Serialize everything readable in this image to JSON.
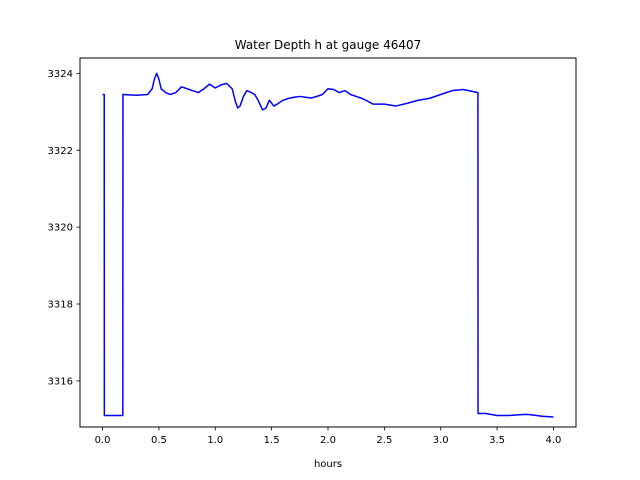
{
  "chart_data": {
    "type": "line",
    "title": "Water Depth h at gauge 46407",
    "xlabel": "hours",
    "ylabel": "",
    "xlim": [
      -0.2,
      4.2
    ],
    "ylim": [
      3314.8,
      3324.4
    ],
    "xticks": [
      0.0,
      0.5,
      1.0,
      1.5,
      2.0,
      2.5,
      3.0,
      3.5,
      4.0
    ],
    "xtick_labels": [
      "0.0",
      "0.5",
      "1.0",
      "1.5",
      "2.0",
      "2.5",
      "3.0",
      "3.5",
      "4.0"
    ],
    "yticks": [
      3316,
      3318,
      3320,
      3322,
      3324
    ],
    "ytick_labels": [
      "3316",
      "3318",
      "3320",
      "3322",
      "3324"
    ],
    "grid": false,
    "legend": "none",
    "series": [
      {
        "color": "#0000ff",
        "x": [
          0.0,
          0.015,
          0.016,
          0.18,
          0.181,
          0.3,
          0.4,
          0.44,
          0.46,
          0.48,
          0.5,
          0.52,
          0.56,
          0.6,
          0.65,
          0.7,
          0.75,
          0.8,
          0.85,
          0.9,
          0.95,
          1.0,
          1.05,
          1.1,
          1.15,
          1.18,
          1.2,
          1.22,
          1.25,
          1.28,
          1.32,
          1.35,
          1.38,
          1.42,
          1.45,
          1.48,
          1.52,
          1.55,
          1.6,
          1.65,
          1.7,
          1.75,
          1.8,
          1.85,
          1.9,
          1.95,
          2.0,
          2.05,
          2.1,
          2.15,
          2.2,
          2.25,
          2.3,
          2.35,
          2.4,
          2.5,
          2.6,
          2.7,
          2.8,
          2.9,
          3.0,
          3.1,
          3.2,
          3.3,
          3.33,
          3.331,
          3.4,
          3.5,
          3.6,
          3.7,
          3.75,
          3.8,
          3.9,
          4.0
        ],
        "y": [
          3323.45,
          3323.45,
          3315.1,
          3315.1,
          3323.45,
          3323.43,
          3323.45,
          3323.6,
          3323.85,
          3324.0,
          3323.85,
          3323.6,
          3323.5,
          3323.45,
          3323.5,
          3323.65,
          3323.6,
          3323.55,
          3323.5,
          3323.6,
          3323.72,
          3323.62,
          3323.7,
          3323.74,
          3323.6,
          3323.25,
          3323.1,
          3323.15,
          3323.4,
          3323.55,
          3323.5,
          3323.45,
          3323.3,
          3323.05,
          3323.1,
          3323.3,
          3323.15,
          3323.2,
          3323.3,
          3323.35,
          3323.38,
          3323.4,
          3323.38,
          3323.36,
          3323.4,
          3323.45,
          3323.6,
          3323.58,
          3323.5,
          3323.55,
          3323.45,
          3323.4,
          3323.35,
          3323.28,
          3323.2,
          3323.2,
          3323.15,
          3323.22,
          3323.3,
          3323.35,
          3323.45,
          3323.55,
          3323.58,
          3323.52,
          3323.5,
          3315.15,
          3315.15,
          3315.1,
          3315.1,
          3315.12,
          3315.13,
          3315.12,
          3315.08,
          3315.06
        ]
      }
    ]
  }
}
